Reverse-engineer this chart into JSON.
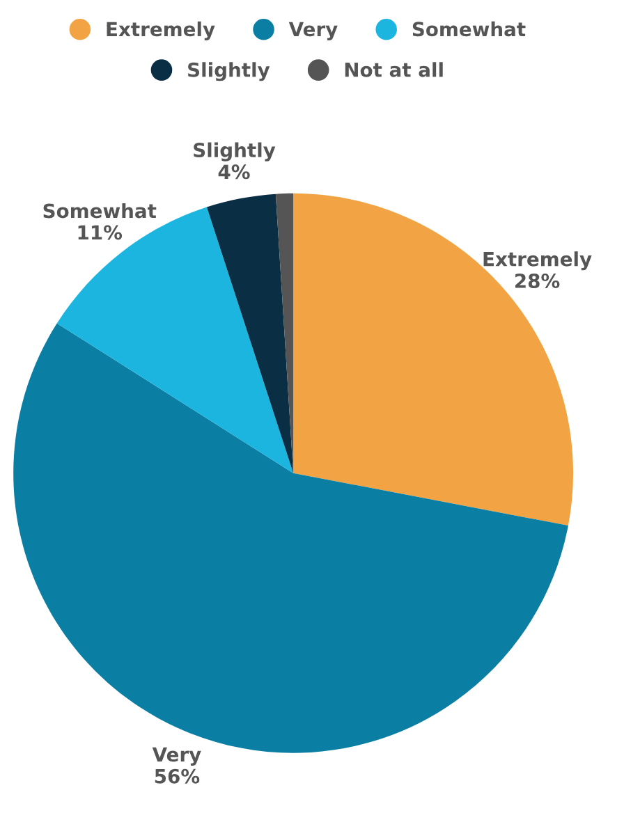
{
  "chart_data": {
    "type": "pie",
    "categories": [
      "Extremely",
      "Very",
      "Somewhat",
      "Slightly",
      "Not at all"
    ],
    "values": [
      28,
      56,
      11,
      4,
      1
    ],
    "colors": [
      "#f2a444",
      "#0b7ea3",
      "#1bb5e0",
      "#0a2f44",
      "#555555"
    ],
    "value_labels": [
      "28%",
      "56%",
      "11%",
      "4%",
      null
    ],
    "legend": "top"
  }
}
